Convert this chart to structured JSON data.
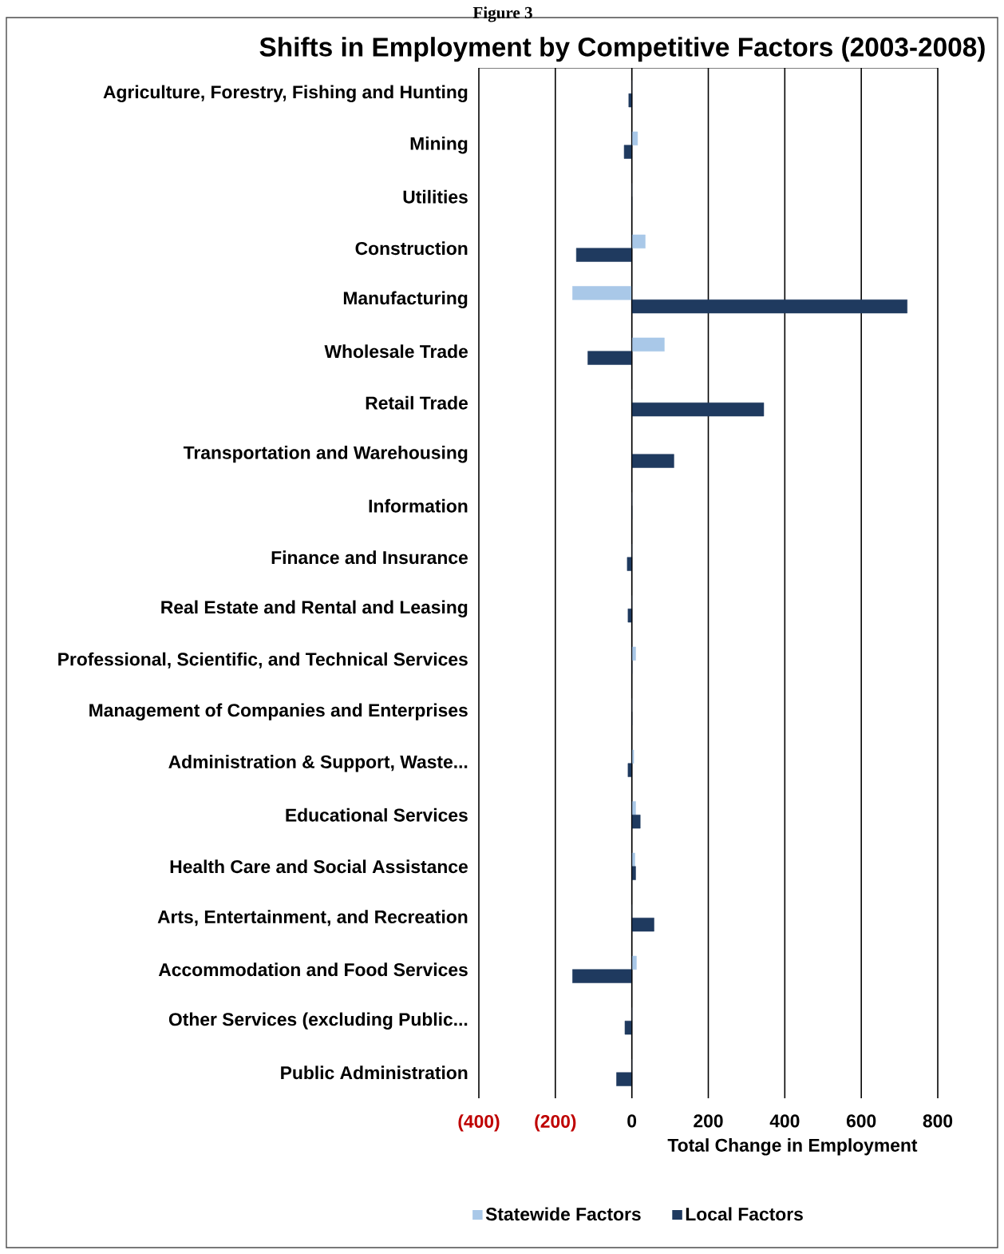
{
  "chart_data": {
    "type": "bar",
    "orientation": "horizontal",
    "title": "Shifts in Employment by Competitive Factors (2003-2008)",
    "xlabel": "Total Change in Employment",
    "annotations": [
      "Figure 3"
    ],
    "categories": [
      "Agriculture, Forestry, Fishing and Hunting",
      "Mining",
      "Utilities",
      "Construction",
      "Manufacturing",
      "Wholesale Trade",
      "Retail Trade",
      "Transportation and Warehousing",
      "Information",
      "Finance and Insurance",
      "Real Estate and Rental and Leasing",
      "Professional, Scientific, and Technical Services",
      "Management of Companies and Enterprises",
      "Administration & Support, Waste...",
      "Educational Services",
      "Health Care and Social Assistance",
      "Arts, Entertainment, and Recreation",
      "Accommodation and Food Services",
      "Other Services (excluding Public...",
      "Public Administration"
    ],
    "series": [
      {
        "name": "Statewide Factors",
        "color": "#a9c8e8",
        "values": [
          0,
          15,
          0,
          35,
          -155,
          85,
          0,
          null,
          0,
          0,
          0,
          10,
          0,
          5,
          10,
          8,
          0,
          12,
          0,
          0
        ]
      },
      {
        "name": "Local Factors",
        "color": "#1f3a5f",
        "values": [
          -8,
          -20,
          0,
          -145,
          720,
          -115,
          345,
          110,
          0,
          -12,
          -10,
          0,
          0,
          -10,
          22,
          10,
          58,
          -155,
          -18,
          -40
        ]
      }
    ],
    "xlim": [
      -400,
      800
    ],
    "xticks": [
      {
        "value": -400,
        "label": "(400)"
      },
      {
        "value": -200,
        "label": "(200)"
      },
      0,
      200,
      400,
      600,
      800
    ],
    "grid": "x",
    "legend": "bottom"
  }
}
